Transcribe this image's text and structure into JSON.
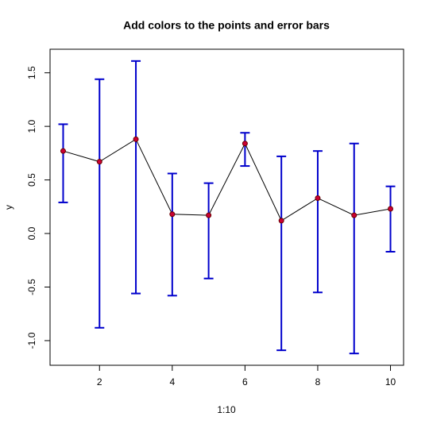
{
  "chart_data": {
    "type": "errorbar",
    "title": "Add colors to the points and error bars",
    "x_label": "1:10",
    "y_label": "y",
    "x": [
      1,
      2,
      3,
      4,
      5,
      6,
      7,
      8,
      9,
      10
    ],
    "values": [
      0.77,
      0.67,
      0.88,
      0.18,
      0.17,
      0.84,
      0.12,
      0.33,
      0.17,
      0.23
    ],
    "lower": [
      0.29,
      -0.88,
      -0.56,
      -0.58,
      -0.42,
      0.63,
      -1.09,
      -0.55,
      -1.12,
      -0.17
    ],
    "upper": [
      1.02,
      1.44,
      1.61,
      0.56,
      0.47,
      0.94,
      0.72,
      0.77,
      0.84,
      0.44
    ],
    "point_color": "#cc0033",
    "errorbar_color": "#0000cc",
    "line_color": "#000000",
    "xlim": [
      0.64,
      10.36
    ],
    "ylim": [
      -1.23,
      1.72
    ],
    "xticks": [
      2,
      4,
      6,
      8,
      10
    ],
    "yticks": [
      {
        "value": -1,
        "label": "-1.0"
      },
      {
        "value": -0.5,
        "label": "-0.5"
      },
      {
        "value": 0,
        "label": "0.0"
      },
      {
        "value": 0.5,
        "label": "0.5"
      },
      {
        "value": 1,
        "label": "1.0"
      },
      {
        "value": 1.5,
        "label": "1.5"
      }
    ]
  }
}
